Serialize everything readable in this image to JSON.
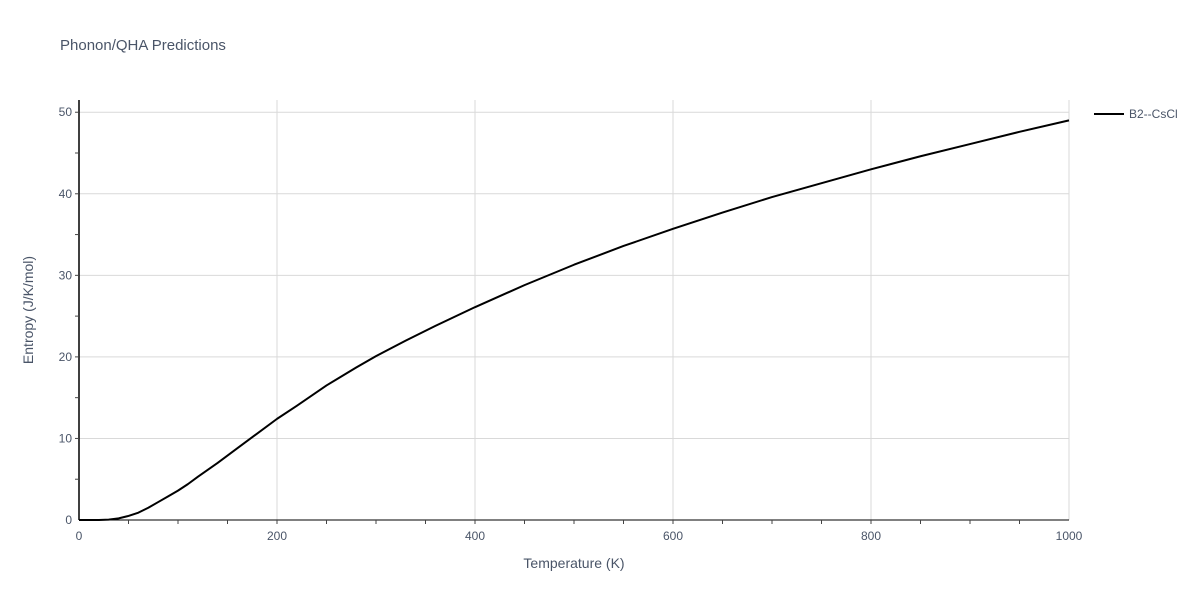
{
  "chart_data": {
    "type": "line",
    "title": "Phonon/QHA Predictions",
    "xlabel": "Temperature (K)",
    "ylabel": "Entropy (J/K/mol)",
    "xlim": [
      0,
      1000
    ],
    "ylim": [
      0,
      51.5
    ],
    "x_ticks": [
      "0",
      "200",
      "400",
      "600",
      "800",
      "1000"
    ],
    "y_ticks": [
      "0",
      "10",
      "20",
      "30",
      "40",
      "50"
    ],
    "grid": true,
    "legend_position": "top-right",
    "series": [
      {
        "name": "B2--CsCl",
        "color": "#000000",
        "x": [
          0,
          10,
          20,
          30,
          40,
          50,
          60,
          70,
          80,
          90,
          100,
          110,
          120,
          140,
          160,
          180,
          200,
          220,
          250,
          280,
          300,
          330,
          360,
          400,
          450,
          500,
          550,
          600,
          650,
          700,
          750,
          800,
          850,
          900,
          950,
          1000
        ],
        "y": [
          0,
          0,
          0,
          0.05,
          0.2,
          0.5,
          0.9,
          1.5,
          2.2,
          2.9,
          3.6,
          4.4,
          5.3,
          7.0,
          8.8,
          10.6,
          12.4,
          14.0,
          16.5,
          18.7,
          20.1,
          22.0,
          23.8,
          26.1,
          28.8,
          31.3,
          33.6,
          35.7,
          37.7,
          39.6,
          41.3,
          43.0,
          44.6,
          46.1,
          47.6,
          49.0
        ]
      }
    ]
  }
}
